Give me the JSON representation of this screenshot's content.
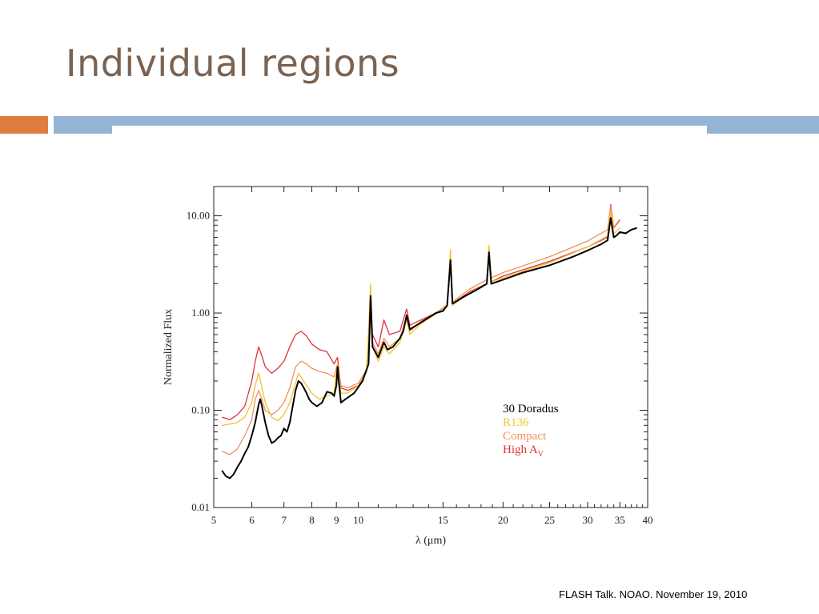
{
  "slide": {
    "title": "Individual regions",
    "footer": "FLASH Talk. NOAO. November 19, 2010"
  },
  "colors": {
    "title": "#7a6352",
    "accent_orange": "#e07c3e",
    "accent_blue": "#93b4d2"
  },
  "chart_data": {
    "type": "line",
    "xlabel": "λ (μm)",
    "ylabel": "Normalized Flux",
    "xscale": "log",
    "yscale": "log",
    "xlim": [
      5,
      40
    ],
    "ylim": [
      0.01,
      20
    ],
    "xticks": [
      5,
      6,
      7,
      8,
      9,
      10,
      15,
      20,
      25,
      30,
      35,
      40
    ],
    "yticks": [
      0.01,
      0.1,
      1.0,
      10.0
    ],
    "ytick_labels": [
      "0.01",
      "0.10",
      "1.00",
      "10.00"
    ],
    "legend_position": "lower-right",
    "series": [
      {
        "name": "30 Doradus",
        "color": "#000000",
        "points": [
          [
            5.2,
            0.024
          ],
          [
            5.3,
            0.021
          ],
          [
            5.4,
            0.02
          ],
          [
            5.5,
            0.022
          ],
          [
            5.6,
            0.026
          ],
          [
            5.7,
            0.03
          ],
          [
            5.8,
            0.036
          ],
          [
            5.9,
            0.042
          ],
          [
            6.0,
            0.055
          ],
          [
            6.1,
            0.075
          ],
          [
            6.2,
            0.115
          ],
          [
            6.25,
            0.13
          ],
          [
            6.3,
            0.11
          ],
          [
            6.4,
            0.075
          ],
          [
            6.5,
            0.055
          ],
          [
            6.6,
            0.046
          ],
          [
            6.7,
            0.048
          ],
          [
            6.8,
            0.052
          ],
          [
            6.9,
            0.055
          ],
          [
            7.0,
            0.065
          ],
          [
            7.1,
            0.06
          ],
          [
            7.2,
            0.075
          ],
          [
            7.3,
            0.11
          ],
          [
            7.4,
            0.16
          ],
          [
            7.5,
            0.2
          ],
          [
            7.6,
            0.19
          ],
          [
            7.7,
            0.17
          ],
          [
            7.8,
            0.15
          ],
          [
            7.9,
            0.13
          ],
          [
            8.0,
            0.12
          ],
          [
            8.2,
            0.11
          ],
          [
            8.4,
            0.12
          ],
          [
            8.6,
            0.155
          ],
          [
            8.8,
            0.15
          ],
          [
            8.9,
            0.14
          ],
          [
            9.0,
            0.18
          ],
          [
            9.05,
            0.28
          ],
          [
            9.1,
            0.2
          ],
          [
            9.2,
            0.12
          ],
          [
            9.4,
            0.13
          ],
          [
            9.8,
            0.15
          ],
          [
            10.2,
            0.2
          ],
          [
            10.5,
            0.3
          ],
          [
            10.6,
            1.5
          ],
          [
            10.7,
            0.45
          ],
          [
            11.0,
            0.35
          ],
          [
            11.3,
            0.5
          ],
          [
            11.5,
            0.42
          ],
          [
            11.8,
            0.45
          ],
          [
            12.2,
            0.55
          ],
          [
            12.4,
            0.65
          ],
          [
            12.6,
            0.95
          ],
          [
            12.8,
            0.68
          ],
          [
            13.5,
            0.8
          ],
          [
            14.5,
            1.0
          ],
          [
            15.0,
            1.05
          ],
          [
            15.3,
            1.2
          ],
          [
            15.55,
            3.5
          ],
          [
            15.7,
            1.25
          ],
          [
            16.5,
            1.45
          ],
          [
            17.5,
            1.7
          ],
          [
            18.5,
            2.0
          ],
          [
            18.7,
            4.2
          ],
          [
            18.9,
            2.0
          ],
          [
            20,
            2.2
          ],
          [
            22,
            2.6
          ],
          [
            25,
            3.1
          ],
          [
            28,
            3.8
          ],
          [
            30,
            4.4
          ],
          [
            32,
            5.1
          ],
          [
            33,
            5.6
          ],
          [
            33.5,
            9.5
          ],
          [
            34,
            6.0
          ],
          [
            34.5,
            6.3
          ],
          [
            35,
            6.8
          ],
          [
            36,
            6.6
          ],
          [
            37,
            7.2
          ],
          [
            38,
            7.5
          ]
        ]
      },
      {
        "name": "R136",
        "color": "#f2c230",
        "points": [
          [
            5.2,
            0.07
          ],
          [
            5.4,
            0.072
          ],
          [
            5.6,
            0.075
          ],
          [
            5.8,
            0.085
          ],
          [
            6.0,
            0.12
          ],
          [
            6.1,
            0.18
          ],
          [
            6.2,
            0.24
          ],
          [
            6.3,
            0.17
          ],
          [
            6.4,
            0.12
          ],
          [
            6.6,
            0.085
          ],
          [
            6.8,
            0.078
          ],
          [
            7.0,
            0.09
          ],
          [
            7.2,
            0.12
          ],
          [
            7.4,
            0.19
          ],
          [
            7.5,
            0.24
          ],
          [
            7.6,
            0.22
          ],
          [
            7.8,
            0.18
          ],
          [
            8.0,
            0.15
          ],
          [
            8.3,
            0.13
          ],
          [
            8.6,
            0.14
          ],
          [
            8.9,
            0.15
          ],
          [
            9.05,
            0.3
          ],
          [
            9.2,
            0.15
          ],
          [
            9.5,
            0.15
          ],
          [
            10,
            0.18
          ],
          [
            10.4,
            0.25
          ],
          [
            10.6,
            2.0
          ],
          [
            10.7,
            0.45
          ],
          [
            11.0,
            0.32
          ],
          [
            11.3,
            0.45
          ],
          [
            11.6,
            0.38
          ],
          [
            12.2,
            0.5
          ],
          [
            12.6,
            0.85
          ],
          [
            12.8,
            0.6
          ],
          [
            13.5,
            0.78
          ],
          [
            14.5,
            0.98
          ],
          [
            15.3,
            1.15
          ],
          [
            15.55,
            4.5
          ],
          [
            15.7,
            1.2
          ],
          [
            17,
            1.6
          ],
          [
            18.5,
            2.0
          ],
          [
            18.7,
            5.0
          ],
          [
            18.9,
            2.1
          ],
          [
            20,
            2.3
          ],
          [
            25,
            3.3
          ],
          [
            30,
            4.8
          ],
          [
            33,
            6.2
          ],
          [
            33.5,
            11.0
          ],
          [
            34,
            6.5
          ],
          [
            35,
            7.5
          ]
        ]
      },
      {
        "name": "Compact",
        "color": "#f0915a",
        "points": [
          [
            5.2,
            0.038
          ],
          [
            5.4,
            0.035
          ],
          [
            5.6,
            0.04
          ],
          [
            5.8,
            0.055
          ],
          [
            6.0,
            0.08
          ],
          [
            6.1,
            0.13
          ],
          [
            6.2,
            0.16
          ],
          [
            6.3,
            0.13
          ],
          [
            6.4,
            0.1
          ],
          [
            6.6,
            0.09
          ],
          [
            6.8,
            0.1
          ],
          [
            7.0,
            0.12
          ],
          [
            7.2,
            0.17
          ],
          [
            7.4,
            0.28
          ],
          [
            7.6,
            0.32
          ],
          [
            7.8,
            0.3
          ],
          [
            8.0,
            0.27
          ],
          [
            8.3,
            0.25
          ],
          [
            8.6,
            0.24
          ],
          [
            8.9,
            0.22
          ],
          [
            9.05,
            0.3
          ],
          [
            9.2,
            0.18
          ],
          [
            9.5,
            0.17
          ],
          [
            10,
            0.19
          ],
          [
            10.4,
            0.26
          ],
          [
            10.6,
            1.4
          ],
          [
            10.7,
            0.5
          ],
          [
            11.0,
            0.38
          ],
          [
            11.3,
            0.55
          ],
          [
            11.6,
            0.45
          ],
          [
            12.2,
            0.55
          ],
          [
            12.6,
            0.9
          ],
          [
            12.8,
            0.65
          ],
          [
            13.5,
            0.82
          ],
          [
            14.5,
            1.0
          ],
          [
            15.3,
            1.2
          ],
          [
            15.55,
            3.8
          ],
          [
            15.7,
            1.3
          ],
          [
            17,
            1.75
          ],
          [
            18.5,
            2.2
          ],
          [
            18.7,
            4.8
          ],
          [
            18.9,
            2.3
          ],
          [
            20,
            2.6
          ],
          [
            25,
            3.8
          ],
          [
            30,
            5.5
          ],
          [
            33,
            7.2
          ],
          [
            33.5,
            12.5
          ],
          [
            34,
            7.6
          ],
          [
            35,
            9.2
          ]
        ]
      },
      {
        "name": "High A",
        "name_subscript": "V",
        "color": "#e0303a",
        "points": [
          [
            5.2,
            0.085
          ],
          [
            5.4,
            0.08
          ],
          [
            5.6,
            0.09
          ],
          [
            5.8,
            0.11
          ],
          [
            6.0,
            0.2
          ],
          [
            6.1,
            0.32
          ],
          [
            6.2,
            0.45
          ],
          [
            6.3,
            0.36
          ],
          [
            6.4,
            0.28
          ],
          [
            6.6,
            0.24
          ],
          [
            6.8,
            0.27
          ],
          [
            7.0,
            0.32
          ],
          [
            7.2,
            0.45
          ],
          [
            7.4,
            0.6
          ],
          [
            7.6,
            0.65
          ],
          [
            7.8,
            0.58
          ],
          [
            8.0,
            0.48
          ],
          [
            8.3,
            0.42
          ],
          [
            8.6,
            0.4
          ],
          [
            8.9,
            0.3
          ],
          [
            9.05,
            0.35
          ],
          [
            9.2,
            0.17
          ],
          [
            9.5,
            0.16
          ],
          [
            10,
            0.18
          ],
          [
            10.4,
            0.25
          ],
          [
            10.6,
            1.6
          ],
          [
            10.7,
            0.6
          ],
          [
            11.0,
            0.45
          ],
          [
            11.3,
            0.85
          ],
          [
            11.6,
            0.6
          ],
          [
            12.2,
            0.65
          ],
          [
            12.6,
            1.1
          ],
          [
            12.8,
            0.75
          ],
          [
            13.5,
            0.85
          ],
          [
            14.5,
            1.0
          ],
          [
            15.3,
            1.2
          ],
          [
            15.55,
            3.6
          ],
          [
            15.7,
            1.25
          ],
          [
            17,
            1.65
          ],
          [
            18.5,
            2.0
          ],
          [
            18.7,
            4.0
          ],
          [
            18.9,
            2.1
          ],
          [
            20,
            2.4
          ],
          [
            25,
            3.4
          ],
          [
            30,
            4.8
          ],
          [
            33,
            6.0
          ],
          [
            33.5,
            13.0
          ],
          [
            34,
            7.5
          ],
          [
            35,
            9.0
          ]
        ]
      }
    ]
  }
}
